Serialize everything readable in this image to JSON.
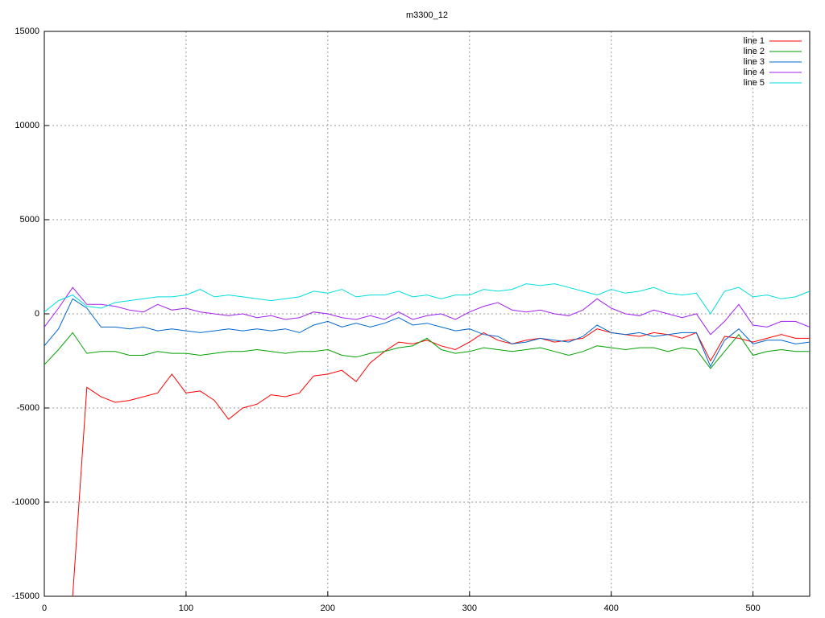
{
  "chart_data": {
    "type": "line",
    "title": "m3300_12",
    "x": [
      0,
      10,
      20,
      30,
      40,
      50,
      60,
      70,
      80,
      90,
      100,
      110,
      120,
      130,
      140,
      150,
      160,
      170,
      180,
      190,
      200,
      210,
      220,
      230,
      240,
      250,
      260,
      270,
      280,
      290,
      300,
      310,
      320,
      330,
      340,
      350,
      360,
      370,
      380,
      390,
      400,
      410,
      420,
      430,
      440,
      450,
      460,
      470,
      480,
      490,
      500,
      510,
      520,
      530,
      540
    ],
    "series": [
      {
        "name": "line 1",
        "color": "#ff0000",
        "values": [
          null,
          null,
          -15000,
          -3900,
          -4400,
          -4700,
          -4600,
          -4400,
          -4200,
          -3200,
          -4200,
          -4100,
          -4600,
          -5600,
          -5000,
          -4800,
          -4300,
          -4400,
          -4200,
          -3300,
          -3200,
          -3000,
          -3600,
          -2600,
          -2000,
          -1500,
          -1600,
          -1400,
          -1700,
          -1900,
          -1500,
          -1000,
          -1400,
          -1600,
          -1400,
          -1300,
          -1500,
          -1400,
          -1300,
          -800,
          -1000,
          -1100,
          -1200,
          -1000,
          -1100,
          -1300,
          -1000,
          -2500,
          -1200,
          -1300,
          -1500,
          -1300,
          -1100,
          -1300,
          -1300
        ]
      },
      {
        "name": "line 2",
        "color": "#00a000",
        "values": [
          -2700,
          -1900,
          -1000,
          -2100,
          -2000,
          -2000,
          -2200,
          -2200,
          -2000,
          -2100,
          -2100,
          -2200,
          -2100,
          -2000,
          -2000,
          -1900,
          -2000,
          -2100,
          -2000,
          -2000,
          -1900,
          -2200,
          -2300,
          -2100,
          -2000,
          -1800,
          -1700,
          -1300,
          -1900,
          -2100,
          -2000,
          -1800,
          -1900,
          -2000,
          -1900,
          -1800,
          -2000,
          -2200,
          -2000,
          -1700,
          -1800,
          -1900,
          -1800,
          -1800,
          -2000,
          -1800,
          -1900,
          -2900,
          -2000,
          -1100,
          -2200,
          -2000,
          -1900,
          -2000,
          -2000
        ]
      },
      {
        "name": "line 3",
        "color": "#0066cc",
        "values": [
          -1700,
          -800,
          800,
          300,
          -700,
          -700,
          -800,
          -700,
          -900,
          -800,
          -900,
          -1000,
          -900,
          -800,
          -900,
          -800,
          -900,
          -800,
          -1000,
          -600,
          -400,
          -700,
          -500,
          -700,
          -500,
          -200,
          -600,
          -500,
          -700,
          -900,
          -800,
          -1100,
          -1200,
          -1600,
          -1500,
          -1300,
          -1400,
          -1500,
          -1200,
          -600,
          -1000,
          -1100,
          -1000,
          -1200,
          -1100,
          -1000,
          -1000,
          -2800,
          -1400,
          -800,
          -1600,
          -1400,
          -1400,
          -1600,
          -1500
        ]
      },
      {
        "name": "line 4",
        "color": "#a020f0",
        "values": [
          -700,
          300,
          1400,
          500,
          500,
          400,
          200,
          100,
          500,
          200,
          300,
          100,
          0,
          -100,
          0,
          -200,
          -100,
          -300,
          -200,
          100,
          0,
          -200,
          -300,
          -100,
          -300,
          100,
          -300,
          -100,
          0,
          -300,
          100,
          400,
          600,
          200,
          100,
          200,
          0,
          -100,
          200,
          800,
          300,
          0,
          -100,
          200,
          0,
          -200,
          0,
          -1100,
          -400,
          500,
          -600,
          -700,
          -400,
          -400,
          -700
        ]
      },
      {
        "name": "line 5",
        "color": "#00dddd",
        "values": [
          100,
          700,
          1000,
          400,
          300,
          600,
          700,
          800,
          900,
          900,
          1000,
          1300,
          900,
          1000,
          900,
          800,
          700,
          800,
          900,
          1200,
          1100,
          1300,
          900,
          1000,
          1000,
          1200,
          900,
          1000,
          800,
          1000,
          1000,
          1300,
          1200,
          1300,
          1600,
          1500,
          1600,
          1400,
          1200,
          1000,
          1300,
          1100,
          1200,
          1400,
          1100,
          1000,
          1100,
          0,
          1200,
          1400,
          900,
          1000,
          800,
          900,
          1200
        ]
      }
    ],
    "xlim": [
      0,
      540
    ],
    "xticks": [
      0,
      100,
      200,
      300,
      400,
      500
    ],
    "ylim": [
      -15000,
      15000
    ],
    "yticks": [
      -15000,
      -10000,
      -5000,
      0,
      5000,
      10000,
      15000
    ],
    "grid": true,
    "legend": "top-right"
  }
}
